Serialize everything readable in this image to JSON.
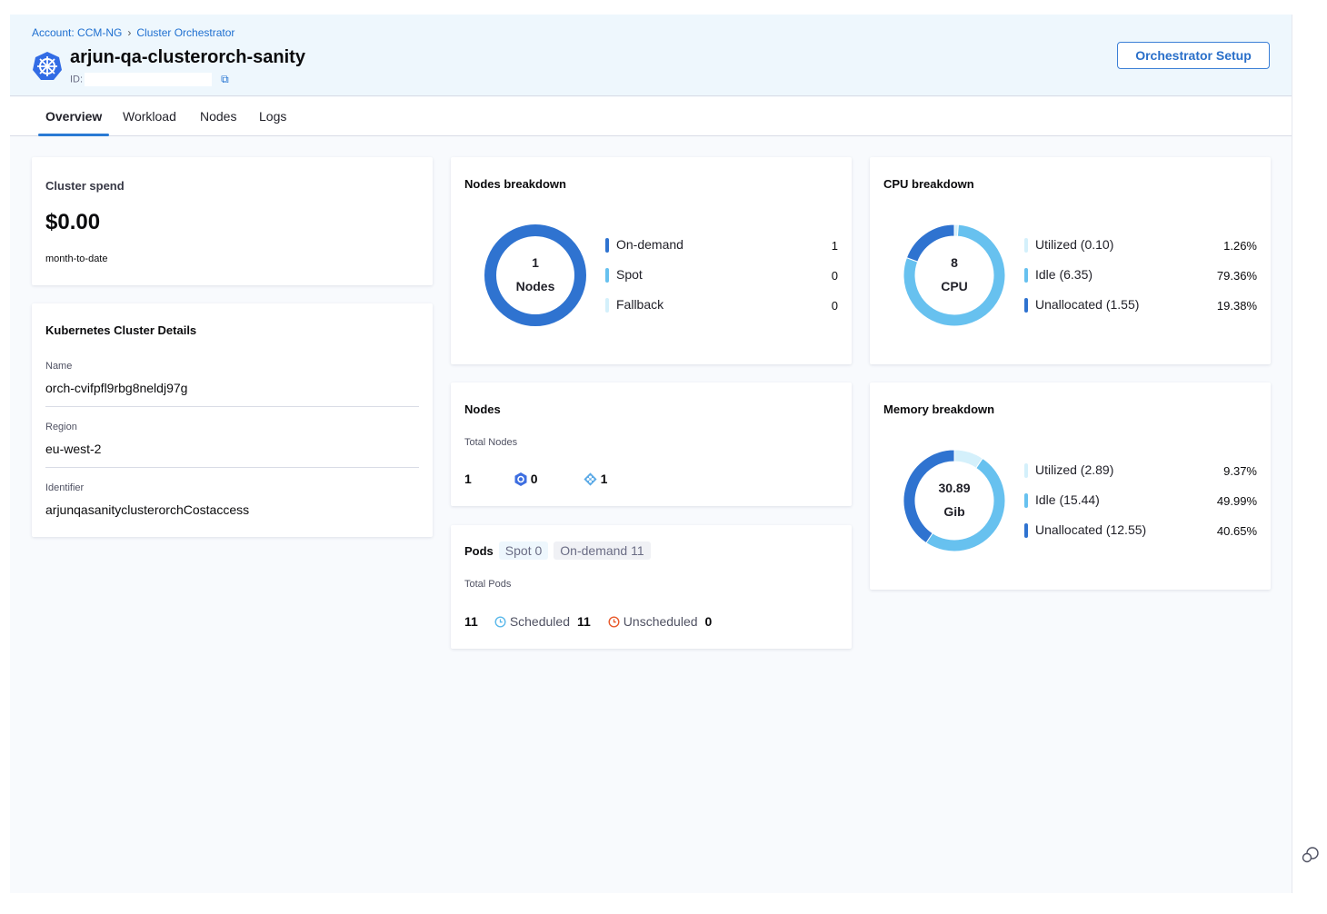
{
  "header": {
    "breadcrumbs": [
      "Account: CCM-NG",
      "Cluster Orchestrator"
    ],
    "title": "arjun-qa-clusterorch-sanity",
    "id_label": "ID:",
    "setup_button": "Orchestrator Setup",
    "icon": "kubernetes-icon"
  },
  "tabs": [
    {
      "label": "Overview",
      "active": true
    },
    {
      "label": "Workload"
    },
    {
      "label": "Nodes"
    },
    {
      "label": "Logs"
    }
  ],
  "spend": {
    "title": "Cluster spend",
    "amount": "$0.00",
    "period": "month-to-date"
  },
  "details": {
    "title": "Kubernetes Cluster Details",
    "fields": [
      {
        "label": "Name",
        "value": "orch-cvifpfl9rbg8neldj97g"
      },
      {
        "label": "Region",
        "value": "eu-west-2"
      },
      {
        "label": "Identifier",
        "value": "arjunqasanityclusterorchCostaccess"
      }
    ]
  },
  "nodes_breakdown": {
    "title": "Nodes breakdown",
    "center_value": "1",
    "center_label": "Nodes",
    "items": [
      {
        "label": "On-demand",
        "value": "1",
        "color": "#2f73d0",
        "fraction": 1
      },
      {
        "label": "Spot",
        "value": "0",
        "color": "#67c1ef",
        "fraction": 0
      },
      {
        "label": "Fallback",
        "value": "0",
        "color": "#d4f0fb",
        "fraction": 0
      }
    ]
  },
  "cpu": {
    "title": "CPU breakdown",
    "center_value": "8",
    "center_label": "CPU",
    "items": [
      {
        "label": "Utilized (0.10)",
        "pct": "1.26%",
        "fraction": 0.0126,
        "color": "#d4f0fb"
      },
      {
        "label": "Idle (6.35)",
        "pct": "79.36%",
        "fraction": 0.7936,
        "color": "#67c1ef"
      },
      {
        "label": "Unallocated (1.55)",
        "pct": "19.38%",
        "fraction": 0.1938,
        "color": "#2f73d0"
      }
    ]
  },
  "memory": {
    "title": "Memory breakdown",
    "center_value": "30.89",
    "center_label": "Gib",
    "items": [
      {
        "label": "Utilized (2.89)",
        "pct": "9.37%",
        "fraction": 0.0937,
        "color": "#d4f0fb"
      },
      {
        "label": "Idle (15.44)",
        "pct": "49.99%",
        "fraction": 0.4999,
        "color": "#67c1ef"
      },
      {
        "label": "Unallocated (12.55)",
        "pct": "40.65%",
        "fraction": 0.4065,
        "color": "#2f73d0"
      }
    ]
  },
  "nodes": {
    "title": "Nodes",
    "total_label": "Total Nodes",
    "total": "1",
    "spot_count": "0",
    "ondemand_count": "1"
  },
  "pods": {
    "title": "Pods",
    "spot_tag": "Spot 0",
    "ondemand_tag": "On-demand 11",
    "total_label": "Total Pods",
    "total": "11",
    "scheduled_label": "Scheduled",
    "scheduled": "11",
    "unscheduled_label": "Unscheduled",
    "unscheduled": "0"
  }
}
